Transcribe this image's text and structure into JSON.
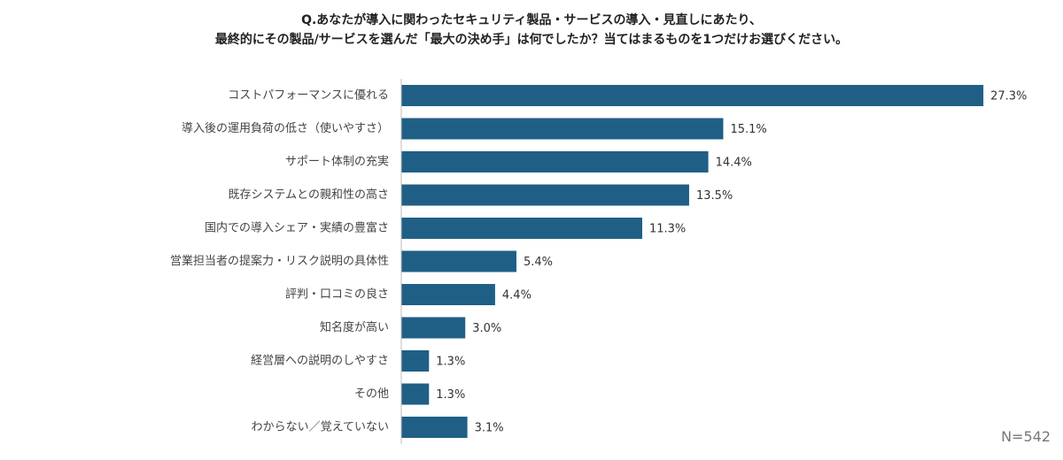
{
  "chart_data": {
    "type": "bar",
    "orientation": "horizontal",
    "title_lines": [
      "Q.あなたが導入に関わったセキュリティ製品・サービスの導入・見直しにあたり、",
      "最終的にその製品/サービスを選んだ「最大の決め手」は何でしたか？当てはまるものを1つだけお選びください。"
    ],
    "categories": [
      "コストパフォーマンスに優れる",
      "導入後の運用負荷の低さ（使いやすさ）",
      "サポート体制の充実",
      "既存システムとの親和性の高さ",
      "国内での導入シェア・実績の豊富さ",
      "営業担当者の提案力・リスク説明の具体性",
      "評判・口コミの良さ",
      "知名度が高い",
      "経営層への説明のしやすさ",
      "その他",
      "わからない／覚えていない"
    ],
    "values": [
      27.3,
      15.1,
      14.4,
      13.5,
      11.3,
      5.4,
      4.4,
      3.0,
      1.3,
      1.3,
      3.1
    ],
    "value_labels": [
      "27.3%",
      "15.1%",
      "14.4%",
      "13.5%",
      "11.3%",
      "5.4%",
      "4.4%",
      "3.0%",
      "1.3%",
      "1.3%",
      "3.1%"
    ],
    "xlim": [
      0,
      28.5
    ],
    "bar_color": "#1f5f86",
    "axis_color": "#bbbbbb",
    "grid": false,
    "legend": "none",
    "sample_size": "N=542"
  }
}
